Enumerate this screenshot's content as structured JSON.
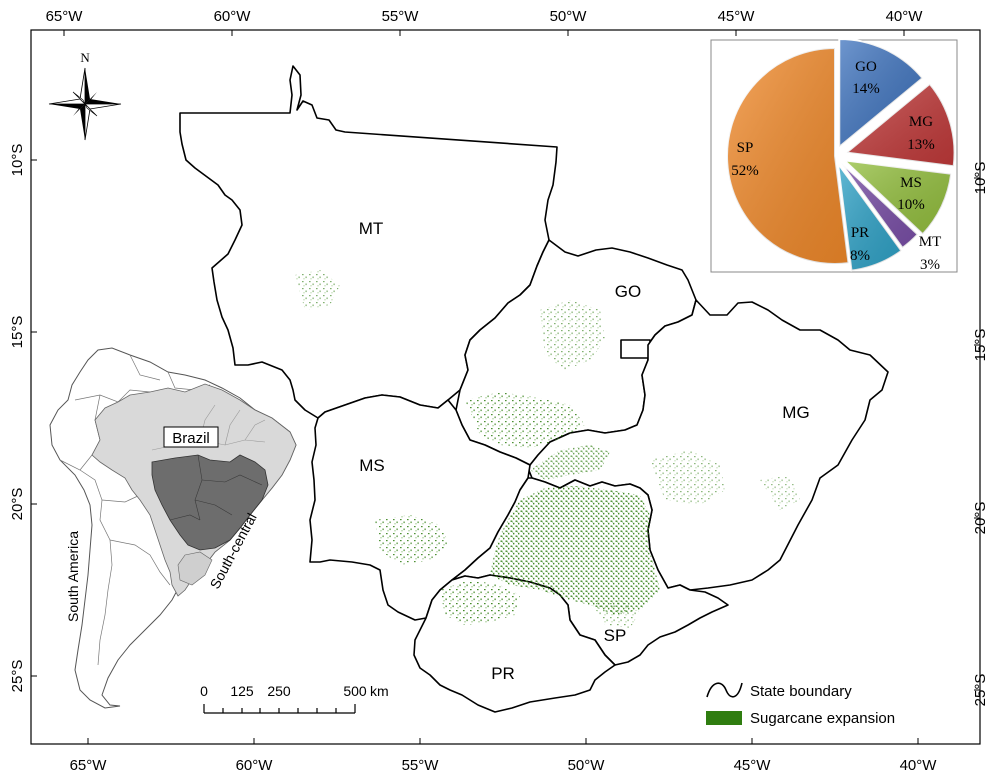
{
  "axes": {
    "top_ticks": [
      "65°W",
      "60°W",
      "55°W",
      "50°W",
      "45°W",
      "40°W"
    ],
    "bottom_ticks": [
      "65°W",
      "60°W",
      "55°W",
      "50°W",
      "45°W",
      "40°W"
    ],
    "left_ticks": [
      "10°S",
      "15°S",
      "20°S",
      "25°S"
    ],
    "right_ticks": [
      "10°S",
      "15°S",
      "20°S",
      "25°S"
    ]
  },
  "north_label": "N",
  "states": {
    "MT": "MT",
    "GO": "GO",
    "MS": "MS",
    "MG": "MG",
    "SP": "SP",
    "PR": "PR"
  },
  "inset": {
    "country_label": "Brazil",
    "continent_label": "South America",
    "region_label": "South-central"
  },
  "scale_bar": {
    "ticks": [
      "0",
      "125",
      "250",
      "500"
    ],
    "unit": "km"
  },
  "legend": {
    "items": [
      {
        "label": "State boundary"
      },
      {
        "label": "Sugarcane expansion",
        "color": "#2f7d10"
      }
    ]
  },
  "chart_data": {
    "type": "pie",
    "slices": [
      {
        "label": "SP",
        "value": 52,
        "display": "52%",
        "color": "#f28a2a"
      },
      {
        "label": "GO",
        "value": 14,
        "display": "14%",
        "color": "#3f74bf"
      },
      {
        "label": "MG",
        "value": 13,
        "display": "13%",
        "color": "#c23a3a"
      },
      {
        "label": "MS",
        "value": 10,
        "display": "10%",
        "color": "#94c03e"
      },
      {
        "label": "MT",
        "value": 3,
        "display": "3%",
        "color": "#7a4fa8"
      },
      {
        "label": "PR",
        "value": 8,
        "display": "8%",
        "color": "#2fa3c8"
      }
    ]
  }
}
